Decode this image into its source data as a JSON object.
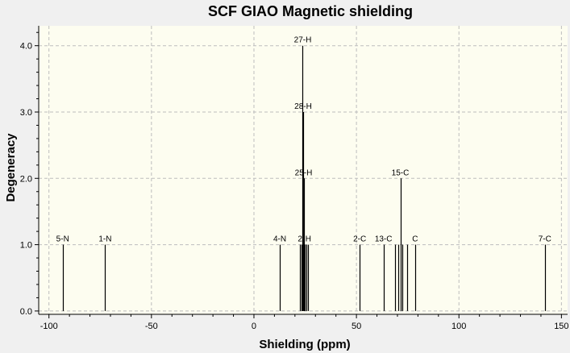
{
  "chart_data": {
    "type": "bar",
    "subtype": "stick-spectrum",
    "title": "SCF GIAO Magnetic shielding",
    "xlabel": "Shielding (ppm)",
    "ylabel": "Degeneracy",
    "xlim": [
      -105,
      153
    ],
    "ylim": [
      -0.05,
      4.3
    ],
    "xticks": [
      -100,
      -50,
      0,
      50,
      100,
      150
    ],
    "xtick_labels": [
      "-100",
      "-50",
      "0",
      "50",
      "100",
      "150"
    ],
    "yticks": [
      0,
      1,
      2,
      3,
      4
    ],
    "ytick_labels": [
      "0.0",
      "1.0",
      "2.0",
      "3.0",
      "4.0"
    ],
    "grid": true,
    "colors": {
      "plot_bg": "#fdfdf0",
      "window_bg": "#f0f0f0",
      "grid": "#bdbdbd",
      "stick": "#000000"
    },
    "peaks": [
      {
        "x": -93.3,
        "y": 1,
        "label": "5-N"
      },
      {
        "x": -72.6,
        "y": 1,
        "label": "1-N"
      },
      {
        "x": 12.6,
        "y": 1,
        "label": "4-N"
      },
      {
        "x": 22.5,
        "y": 1,
        "label": "2"
      },
      {
        "x": 23.4,
        "y": 1,
        "label": ""
      },
      {
        "x": 23.8,
        "y": 4,
        "label": "27-H"
      },
      {
        "x": 24.0,
        "y": 3,
        "label": "28-H"
      },
      {
        "x": 24.2,
        "y": 2,
        "label": "25-H"
      },
      {
        "x": 24.6,
        "y": 1,
        "label": ""
      },
      {
        "x": 25.4,
        "y": 1,
        "label": ""
      },
      {
        "x": 26.5,
        "y": 1,
        "label": "H"
      },
      {
        "x": 51.6,
        "y": 1,
        "label": "2-C"
      },
      {
        "x": 63.2,
        "y": 1,
        "label": "13-C"
      },
      {
        "x": 68.9,
        "y": 1,
        "label": ""
      },
      {
        "x": 70.6,
        "y": 1,
        "label": ""
      },
      {
        "x": 71.4,
        "y": 2,
        "label": "15-C"
      },
      {
        "x": 72.2,
        "y": 1,
        "label": ""
      },
      {
        "x": 74.7,
        "y": 1,
        "label": ""
      },
      {
        "x": 78.6,
        "y": 1,
        "label": "C"
      },
      {
        "x": 141.9,
        "y": 1,
        "label": "7-C"
      }
    ]
  }
}
